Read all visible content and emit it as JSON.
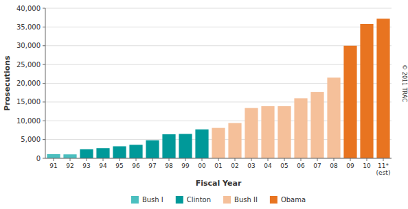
{
  "chart_data": {
    "type": "bar",
    "stacked": true,
    "categories": [
      "91",
      "92",
      "93",
      "94",
      "95",
      "96",
      "97",
      "98",
      "99",
      "00",
      "01",
      "02",
      "03",
      "04",
      "05",
      "06",
      "07",
      "08",
      "09",
      "10",
      "11*\n(est)"
    ],
    "series": [
      {
        "name": "Bush I",
        "color": "#4BBFBF",
        "values": [
          1100,
          1050,
          null,
          null,
          null,
          null,
          null,
          null,
          null,
          null,
          null,
          null,
          null,
          null,
          null,
          null,
          null,
          null,
          null,
          null,
          null
        ]
      },
      {
        "name": "Clinton",
        "color": "#009999",
        "values": [
          null,
          null,
          2400,
          2700,
          3200,
          3600,
          4800,
          6400,
          6500,
          7700,
          null,
          null,
          null,
          null,
          null,
          null,
          null,
          null,
          null,
          null,
          null
        ]
      },
      {
        "name": "Bush II",
        "color": "#F5C09A",
        "values": [
          null,
          null,
          null,
          null,
          null,
          null,
          null,
          null,
          null,
          null,
          8100,
          9400,
          13400,
          13900,
          13900,
          16000,
          17700,
          21500,
          null,
          null,
          null
        ]
      },
      {
        "name": "Obama",
        "color": "#E87420",
        "values": [
          null,
          null,
          null,
          null,
          null,
          null,
          null,
          null,
          null,
          null,
          null,
          null,
          null,
          null,
          null,
          null,
          null,
          null,
          30000,
          35800,
          37200
        ]
      }
    ],
    "ylabel": "Prosecutions",
    "xlabel": "Fiscal Year",
    "ylim": [
      0,
      40000
    ],
    "yticks": [
      0,
      {
        "value": 5000,
        "label": "5,000"
      },
      {
        "value": 10000,
        "label": "10,000"
      },
      {
        "value": 15000,
        "label": "15,000"
      },
      {
        "value": 20000,
        "label": "20,000"
      },
      {
        "value": 25000,
        "label": "25,000"
      },
      {
        "value": 30000,
        "label": "30,000"
      },
      {
        "value": 35000,
        "label": "35,000"
      },
      {
        "value": 40000,
        "label": "40,000"
      }
    ],
    "grid": true,
    "legend": "bottom",
    "annotations": [
      "© 2011 TRAC"
    ]
  }
}
